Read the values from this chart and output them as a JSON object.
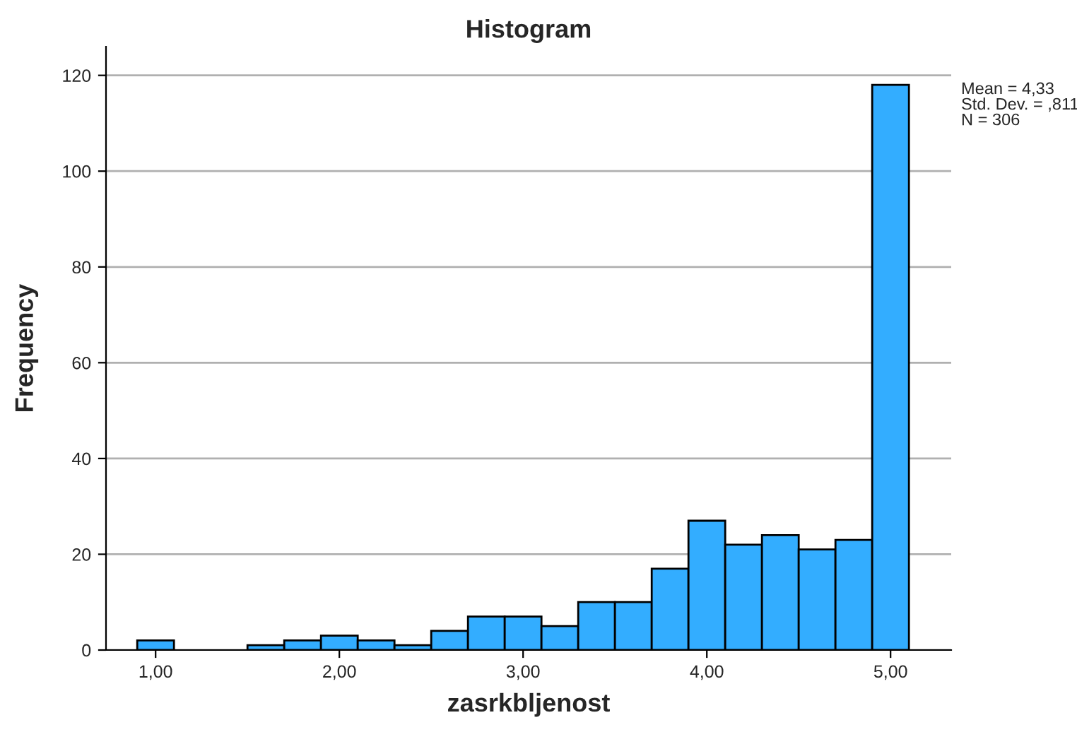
{
  "chart_data": {
    "type": "histogram",
    "title": "Histogram",
    "xlabel": "zasrkbljenost",
    "ylabel": "Frequency",
    "bins": [
      0.9,
      1.1,
      1.3,
      1.5,
      1.7,
      1.9,
      2.1,
      2.3,
      2.5,
      2.7,
      2.9,
      3.1,
      3.3,
      3.5,
      3.7,
      3.9,
      4.1,
      4.3,
      4.5,
      4.7,
      4.9,
      5.1
    ],
    "values": [
      2,
      0,
      0,
      1,
      2,
      3,
      2,
      1,
      4,
      7,
      7,
      5,
      10,
      10,
      17,
      27,
      22,
      24,
      21,
      23,
      118
    ],
    "color": "#33adff",
    "xlim": [
      0.73,
      5.33
    ],
    "ylim": [
      0,
      126
    ],
    "xticks": [
      {
        "value": 1,
        "label": "1,00"
      },
      {
        "value": 2,
        "label": "2,00"
      },
      {
        "value": 3,
        "label": "3,00"
      },
      {
        "value": 4,
        "label": "4,00"
      },
      {
        "value": 5,
        "label": "5,00"
      }
    ],
    "yticks": [
      0,
      20,
      40,
      60,
      80,
      100,
      120
    ],
    "grid": "y",
    "annotations": [
      "Mean = 4,33\nStd. Dev. = ,811\nN = 306"
    ]
  }
}
